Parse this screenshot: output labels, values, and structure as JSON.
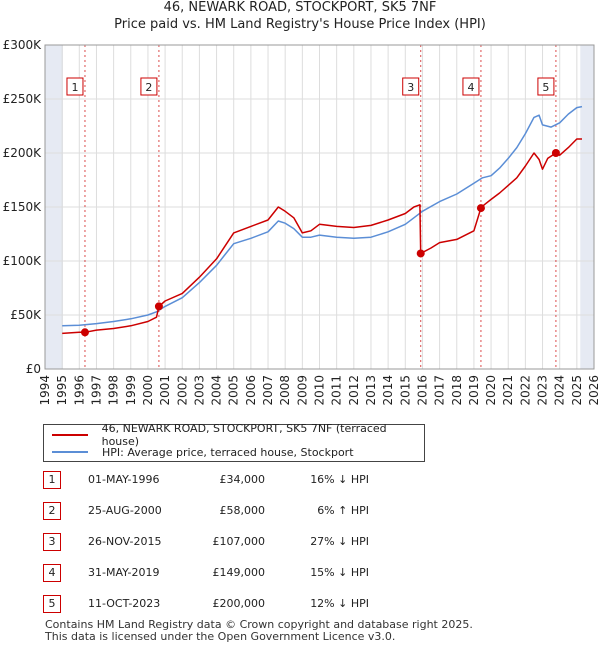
{
  "title_line1": "46, NEWARK ROAD, STOCKPORT, SK5 7NF",
  "title_line2": "Price paid vs. HM Land Registry's House Price Index (HPI)",
  "chart_data": {
    "type": "line",
    "title": "46, NEWARK ROAD, STOCKPORT, SK5 7NF",
    "subtitle": "Price paid vs. HM Land Registry's House Price Index (HPI)",
    "xlabel": "",
    "ylabel": "",
    "xlim": [
      1994,
      2026
    ],
    "ylim": [
      0,
      300000
    ],
    "grid": true,
    "y_ticks": [
      0,
      50000,
      100000,
      150000,
      200000,
      250000,
      300000
    ],
    "y_tick_labels": [
      "£0",
      "£50K",
      "£100K",
      "£150K",
      "£200K",
      "£250K",
      "£300K"
    ],
    "x_ticks": [
      1994,
      1995,
      1996,
      1997,
      1998,
      1999,
      2000,
      2001,
      2002,
      2003,
      2004,
      2005,
      2006,
      2007,
      2008,
      2009,
      2010,
      2011,
      2012,
      2013,
      2014,
      2015,
      2016,
      2017,
      2018,
      2019,
      2020,
      2021,
      2022,
      2023,
      2024,
      2025,
      2026
    ],
    "shaded_regions": [
      [
        1994,
        1995.05
      ],
      [
        2025.2,
        2026
      ]
    ],
    "colors": {
      "price_paid": "#cc0000",
      "hpi": "#5b8ed6",
      "marker": "#cc0000",
      "grid": "#dddddd",
      "shade": "#e6eaf3"
    },
    "series": [
      {
        "name": "46, NEWARK ROAD, STOCKPORT, SK5 7NF (terraced house)",
        "key": "price_paid",
        "x": [
          1995.0,
          1996.0,
          1996.33,
          1997.0,
          1998.0,
          1999.0,
          2000.0,
          2000.5,
          2000.64,
          2001.0,
          2002.0,
          2003.0,
          2004.0,
          2004.5,
          2005.0,
          2006.0,
          2007.0,
          2007.6,
          2008.0,
          2008.5,
          2009.0,
          2009.5,
          2010.0,
          2011.0,
          2012.0,
          2013.0,
          2014.0,
          2015.0,
          2015.5,
          2015.85,
          2015.9,
          2016.5,
          2017.0,
          2018.0,
          2019.0,
          2019.41,
          2019.6,
          2020.0,
          2020.5,
          2021.0,
          2021.5,
          2022.0,
          2022.5,
          2022.8,
          2023.0,
          2023.3,
          2023.78,
          2024.0,
          2024.5,
          2025.0,
          2025.3
        ],
        "values": [
          33000,
          34000,
          34000,
          36000,
          37500,
          40000,
          44000,
          48000,
          58000,
          63000,
          70000,
          85000,
          102000,
          114000,
          126000,
          132000,
          138000,
          150000,
          146000,
          140000,
          126000,
          128000,
          134000,
          132000,
          131000,
          133000,
          138000,
          144000,
          150000,
          152000,
          107000,
          112000,
          117000,
          120000,
          128000,
          149000,
          152000,
          157000,
          163000,
          170000,
          177000,
          188000,
          200000,
          194000,
          185000,
          195000,
          200000,
          198000,
          205000,
          213000,
          213000
        ]
      },
      {
        "name": "HPI: Average price, terraced house, Stockport",
        "key": "hpi",
        "x": [
          1995.0,
          1996.0,
          1997.0,
          1998.0,
          1999.0,
          2000.0,
          2000.5,
          2001.0,
          2002.0,
          2003.0,
          2004.0,
          2004.5,
          2005.0,
          2006.0,
          2007.0,
          2007.6,
          2008.0,
          2008.5,
          2009.0,
          2009.5,
          2010.0,
          2011.0,
          2012.0,
          2013.0,
          2014.0,
          2015.0,
          2015.5,
          2016.0,
          2017.0,
          2018.0,
          2019.0,
          2019.5,
          2020.0,
          2020.5,
          2021.0,
          2021.5,
          2022.0,
          2022.5,
          2022.8,
          2023.0,
          2023.5,
          2024.0,
          2024.5,
          2025.0,
          2025.3
        ],
        "values": [
          40000,
          40500,
          42000,
          44000,
          46500,
          50000,
          53000,
          58000,
          66000,
          80000,
          96000,
          106000,
          116000,
          121000,
          127000,
          137000,
          135000,
          130000,
          122000,
          122000,
          124000,
          122000,
          121000,
          122000,
          127000,
          134000,
          140000,
          146000,
          155000,
          162000,
          172000,
          177000,
          179000,
          186000,
          195000,
          205000,
          218000,
          233000,
          235000,
          226000,
          224000,
          228000,
          236000,
          242000,
          243000
        ]
      }
    ],
    "markers": [
      {
        "label": "1",
        "x": 1996.33,
        "y": 34000
      },
      {
        "label": "2",
        "x": 2000.64,
        "y": 58000
      },
      {
        "label": "3",
        "x": 2015.9,
        "y": 107000
      },
      {
        "label": "4",
        "x": 2019.41,
        "y": 149000
      },
      {
        "label": "5",
        "x": 2023.78,
        "y": 200000
      }
    ]
  },
  "legend": [
    {
      "label": "46, NEWARK ROAD, STOCKPORT, SK5 7NF (terraced house)",
      "color": "#cc0000"
    },
    {
      "label": "HPI: Average price, terraced house, Stockport",
      "color": "#5b8ed6"
    }
  ],
  "sales": [
    {
      "num": "1",
      "date": "01-MAY-1996",
      "price": "£34,000",
      "hpi": "16% ↓ HPI"
    },
    {
      "num": "2",
      "date": "25-AUG-2000",
      "price": "£58,000",
      "hpi": "6% ↑ HPI"
    },
    {
      "num": "3",
      "date": "26-NOV-2015",
      "price": "£107,000",
      "hpi": "27% ↓ HPI"
    },
    {
      "num": "4",
      "date": "31-MAY-2019",
      "price": "£149,000",
      "hpi": "15% ↓ HPI"
    },
    {
      "num": "5",
      "date": "11-OCT-2023",
      "price": "£200,000",
      "hpi": "12% ↓ HPI"
    }
  ],
  "footer": {
    "line1": "Contains HM Land Registry data © Crown copyright and database right 2025.",
    "line2": "This data is licensed under the Open Government Licence v3.0."
  }
}
